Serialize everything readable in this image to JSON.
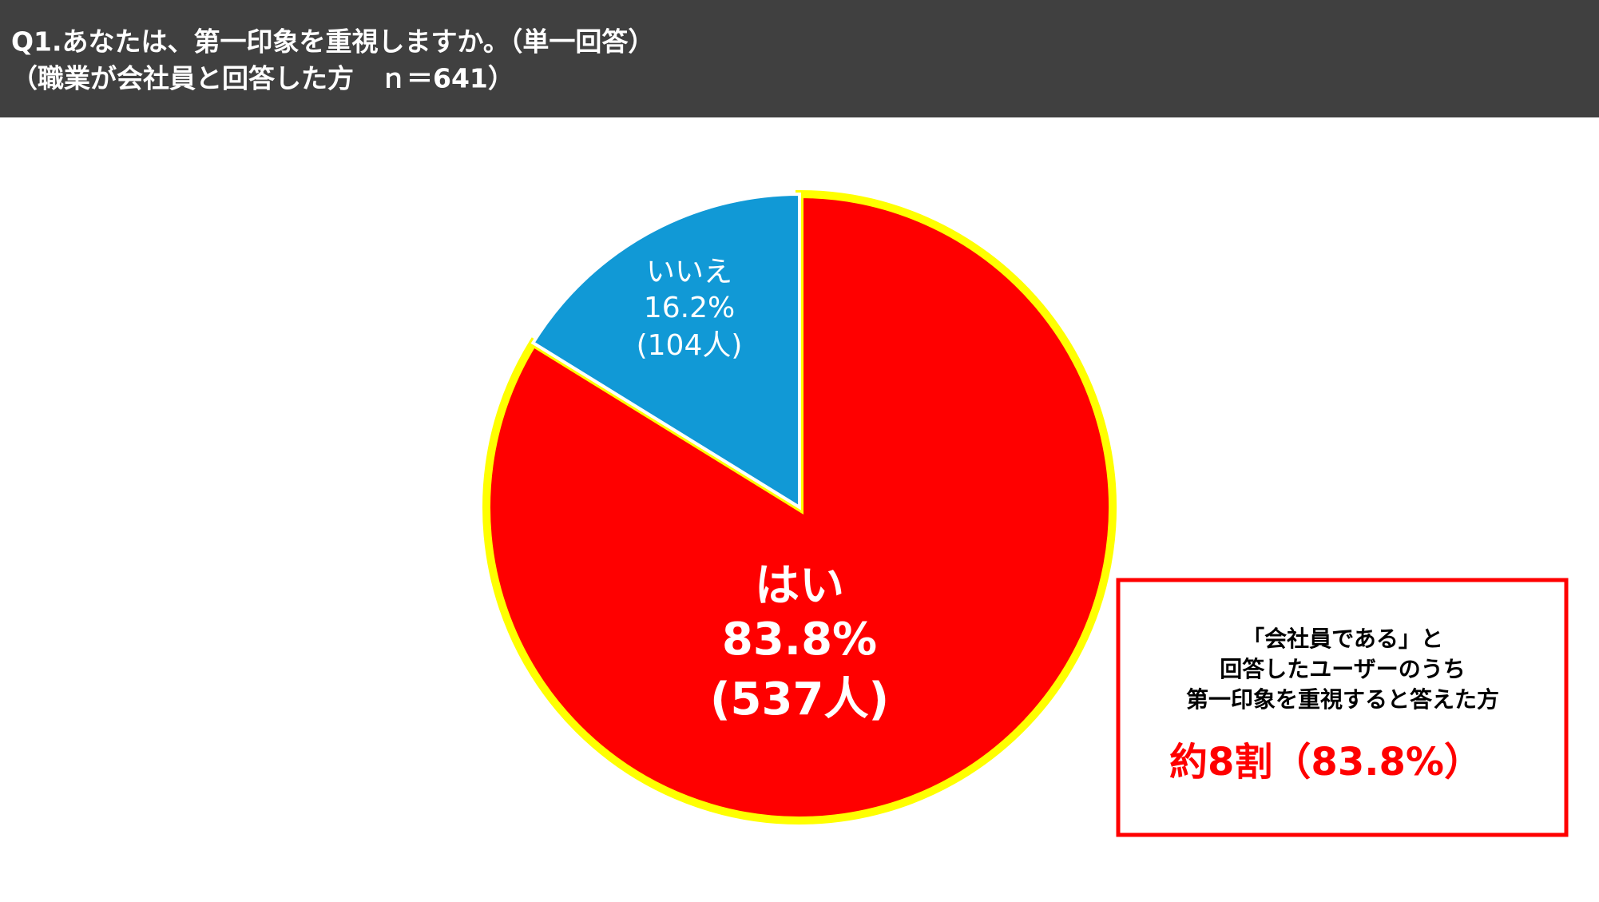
{
  "chart_data": {
    "type": "pie",
    "title": "Q1.あなたは、第一印象を重視しますか。（単一回答）",
    "subtitle": "（職業が会社員と回答した方　ｎ＝641）",
    "categories": [
      "はい",
      "いいえ"
    ],
    "values": [
      83.8,
      16.2
    ],
    "value_labels": [
      "83.8%",
      "16.2%"
    ],
    "count_labels": [
      "(537人)",
      "(104人)"
    ],
    "colors": [
      "#ff0000",
      "#1199d6"
    ],
    "callout": {
      "lines": [
        "「会社員である」と",
        "回答したユーザーのうち",
        "第一印象を重視すると答えた方"
      ],
      "highlight": "約8割（83.8%）"
    }
  }
}
